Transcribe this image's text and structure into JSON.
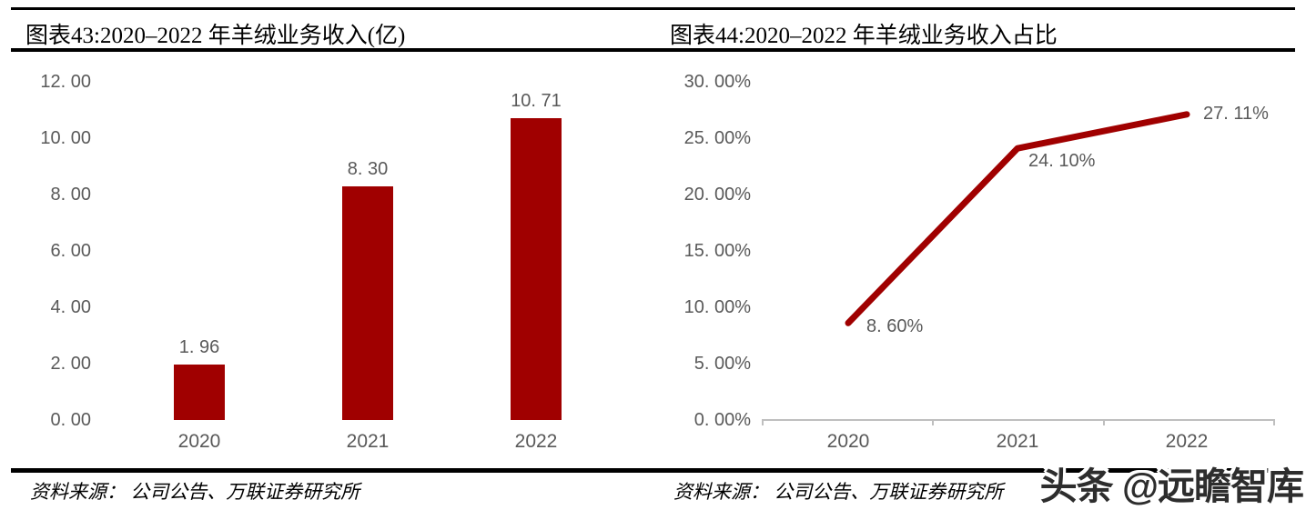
{
  "panels": {
    "left": {
      "source": "资料来源： 公司公告、万联证券研究所"
    },
    "right": {
      "source": "资料来源： 公司公告、万联证券研究所"
    }
  },
  "watermark": {
    "text": "头条 @远瞻智库"
  },
  "colors": {
    "series_red": "#A00000",
    "label_gray": "#595959",
    "axis_gray": "#BFBFBF",
    "rule_black": "#000000",
    "background": "#FFFFFF"
  },
  "chart_data": [
    {
      "type": "bar",
      "title": "图表43:2020–2022 年羊绒业务收入(亿)",
      "categories": [
        "2020",
        "2021",
        "2022"
      ],
      "values": [
        1.96,
        8.3,
        10.71
      ],
      "data_labels": [
        "1. 96",
        "8. 30",
        "10. 71"
      ],
      "ylabel": "",
      "xlabel": "",
      "ylim": [
        0,
        12
      ],
      "ytick_step": 2,
      "ytick_labels": [
        "0. 00",
        "2. 00",
        "4. 00",
        "6. 00",
        "8. 00",
        "10. 00",
        "12. 00"
      ],
      "bar_color": "#A00000",
      "grid": false,
      "legend": "none"
    },
    {
      "type": "line",
      "title": "图表44:2020–2022 年羊绒业务收入占比",
      "categories": [
        "2020",
        "2021",
        "2022"
      ],
      "values": [
        8.6,
        24.1,
        27.11
      ],
      "data_labels": [
        "8. 60%",
        "24. 10%",
        "27. 11%"
      ],
      "ylabel": "",
      "xlabel": "",
      "ylim": [
        0,
        30
      ],
      "ytick_step": 5,
      "ytick_labels": [
        "0. 00%",
        "5. 00%",
        "10. 00%",
        "15. 00%",
        "20. 00%",
        "25. 00%",
        "30. 00%"
      ],
      "line_color": "#A00000",
      "grid": false,
      "legend": "none",
      "x_axis_line": true
    }
  ]
}
